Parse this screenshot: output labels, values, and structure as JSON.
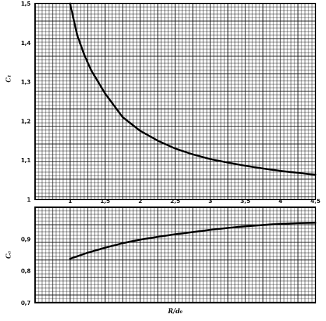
{
  "chart_data": [
    {
      "type": "line",
      "panel": "upper",
      "title": "",
      "ylabel": "C₁",
      "xlabel": "",
      "xlim": [
        0.5,
        4.5
      ],
      "ylim": [
        1.0,
        1.5
      ],
      "grid": true,
      "x_ticks": [
        "1",
        "1,5",
        "2",
        "2,5",
        "3",
        "3,5",
        "4",
        "4,5"
      ],
      "y_ticks": [
        "1",
        "1,1",
        "1,2",
        "1,3",
        "1,4",
        "1,5"
      ],
      "series": [
        {
          "x": [
            1.0,
            1.1,
            1.2,
            1.3,
            1.4,
            1.5,
            1.75,
            2.0,
            2.25,
            2.5,
            2.75,
            3.0,
            3.25,
            3.5,
            3.75,
            4.0,
            4.25,
            4.5
          ],
          "y": [
            1.5,
            1.42,
            1.37,
            1.33,
            1.3,
            1.27,
            1.21,
            1.175,
            1.15,
            1.13,
            1.115,
            1.103,
            1.094,
            1.086,
            1.079,
            1.073,
            1.068,
            1.063
          ]
        }
      ]
    },
    {
      "type": "line",
      "panel": "lower",
      "title": "",
      "ylabel": "Cₐ",
      "xlabel": "R/d₀",
      "xlim": [
        0.5,
        4.5
      ],
      "ylim": [
        0.7,
        1.0
      ],
      "grid": true,
      "y_ticks": [
        "0,7",
        "0,8",
        "0,9"
      ],
      "series": [
        {
          "x": [
            1.0,
            1.25,
            1.5,
            1.75,
            2.0,
            2.25,
            2.5,
            2.75,
            3.0,
            3.25,
            3.5,
            3.75,
            4.0,
            4.25,
            4.5
          ],
          "y": [
            0.838,
            0.857,
            0.873,
            0.887,
            0.898,
            0.907,
            0.915,
            0.922,
            0.929,
            0.935,
            0.94,
            0.944,
            0.948,
            0.95,
            0.951
          ]
        }
      ]
    }
  ]
}
